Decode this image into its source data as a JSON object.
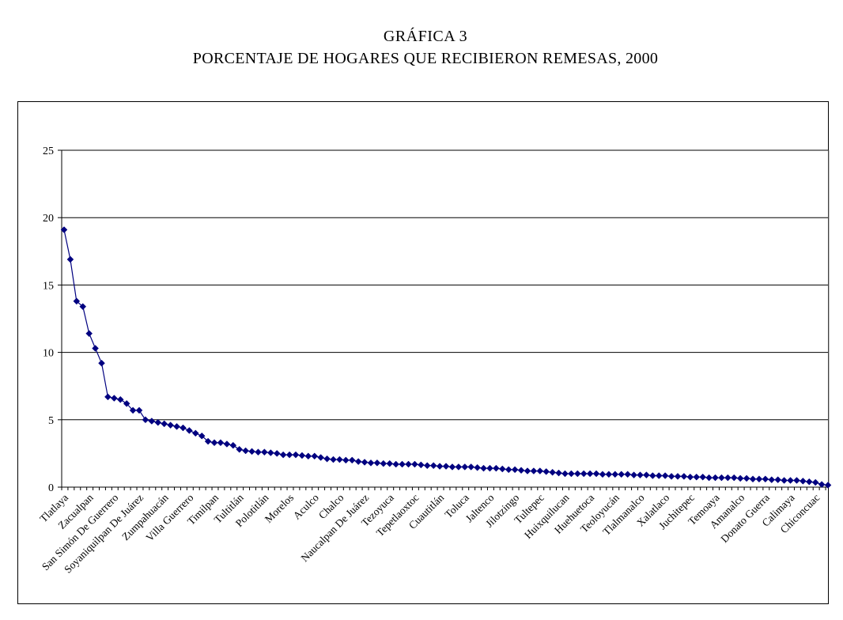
{
  "chart_data": {
    "type": "line",
    "title": "GRÁFICA 3",
    "subtitle": "PORCENTAJE DE HOGARES QUE RECIBIERON REMESAS, 2000",
    "xlabel": "",
    "ylabel": "",
    "ylim": [
      0,
      25
    ],
    "yticks": [
      0,
      5,
      10,
      15,
      20,
      25
    ],
    "grid": true,
    "legend": "none",
    "line_color": "#000080",
    "marker": "diamond",
    "labeled_categories": [
      {
        "index": 0,
        "label": "Tlatlaya"
      },
      {
        "index": 4,
        "label": "Zacualpan"
      },
      {
        "index": 8,
        "label": "San Simón De Guerrero"
      },
      {
        "index": 12,
        "label": "Soyaniquilpan De Juárez"
      },
      {
        "index": 16,
        "label": "Zumpahuacán"
      },
      {
        "index": 20,
        "label": "Villa Guerrero"
      },
      {
        "index": 24,
        "label": "Timilpan"
      },
      {
        "index": 28,
        "label": "Tultitlán"
      },
      {
        "index": 32,
        "label": "Polotitlán"
      },
      {
        "index": 36,
        "label": "Morelos"
      },
      {
        "index": 40,
        "label": "Aculco"
      },
      {
        "index": 44,
        "label": "Chalco"
      },
      {
        "index": 48,
        "label": "Naucalpan De Juárez"
      },
      {
        "index": 52,
        "label": "Tezoyuca"
      },
      {
        "index": 56,
        "label": "Tepetlaoxtoc"
      },
      {
        "index": 60,
        "label": "Cuautitlán"
      },
      {
        "index": 64,
        "label": "Toluca"
      },
      {
        "index": 68,
        "label": "Jaltenco"
      },
      {
        "index": 72,
        "label": "Jilotzingo"
      },
      {
        "index": 76,
        "label": "Tultepec"
      },
      {
        "index": 80,
        "label": "Huixquilucan"
      },
      {
        "index": 84,
        "label": "Huehuetoca"
      },
      {
        "index": 88,
        "label": "Teoloyucán"
      },
      {
        "index": 92,
        "label": "Tlalmanalco"
      },
      {
        "index": 96,
        "label": "Xalatlaco"
      },
      {
        "index": 100,
        "label": "Juchitepec"
      },
      {
        "index": 104,
        "label": "Temoaya"
      },
      {
        "index": 108,
        "label": "Amanalco"
      },
      {
        "index": 112,
        "label": "Donato Guerra"
      },
      {
        "index": 116,
        "label": "Calimaya"
      },
      {
        "index": 120,
        "label": "Chiconcuac"
      }
    ],
    "values": [
      19.1,
      16.9,
      13.8,
      13.4,
      11.4,
      10.3,
      9.2,
      6.7,
      6.6,
      6.5,
      6.2,
      5.7,
      5.7,
      5.0,
      4.9,
      4.8,
      4.7,
      4.6,
      4.5,
      4.4,
      4.2,
      4.0,
      3.8,
      3.4,
      3.3,
      3.3,
      3.2,
      3.1,
      2.8,
      2.7,
      2.65,
      2.6,
      2.6,
      2.55,
      2.5,
      2.4,
      2.4,
      2.4,
      2.35,
      2.3,
      2.3,
      2.2,
      2.1,
      2.05,
      2.05,
      2.0,
      2.0,
      1.9,
      1.85,
      1.8,
      1.8,
      1.75,
      1.75,
      1.7,
      1.7,
      1.7,
      1.7,
      1.65,
      1.6,
      1.6,
      1.55,
      1.55,
      1.5,
      1.5,
      1.5,
      1.5,
      1.45,
      1.4,
      1.4,
      1.4,
      1.35,
      1.3,
      1.3,
      1.25,
      1.2,
      1.2,
      1.2,
      1.15,
      1.1,
      1.05,
      1.0,
      1.0,
      1.0,
      1.0,
      1.0,
      1.0,
      0.95,
      0.95,
      0.95,
      0.95,
      0.95,
      0.9,
      0.9,
      0.9,
      0.85,
      0.85,
      0.85,
      0.8,
      0.8,
      0.8,
      0.75,
      0.75,
      0.75,
      0.7,
      0.7,
      0.7,
      0.7,
      0.7,
      0.65,
      0.65,
      0.6,
      0.6,
      0.6,
      0.55,
      0.55,
      0.5,
      0.5,
      0.5,
      0.45,
      0.4,
      0.35,
      0.2,
      0.15
    ]
  }
}
